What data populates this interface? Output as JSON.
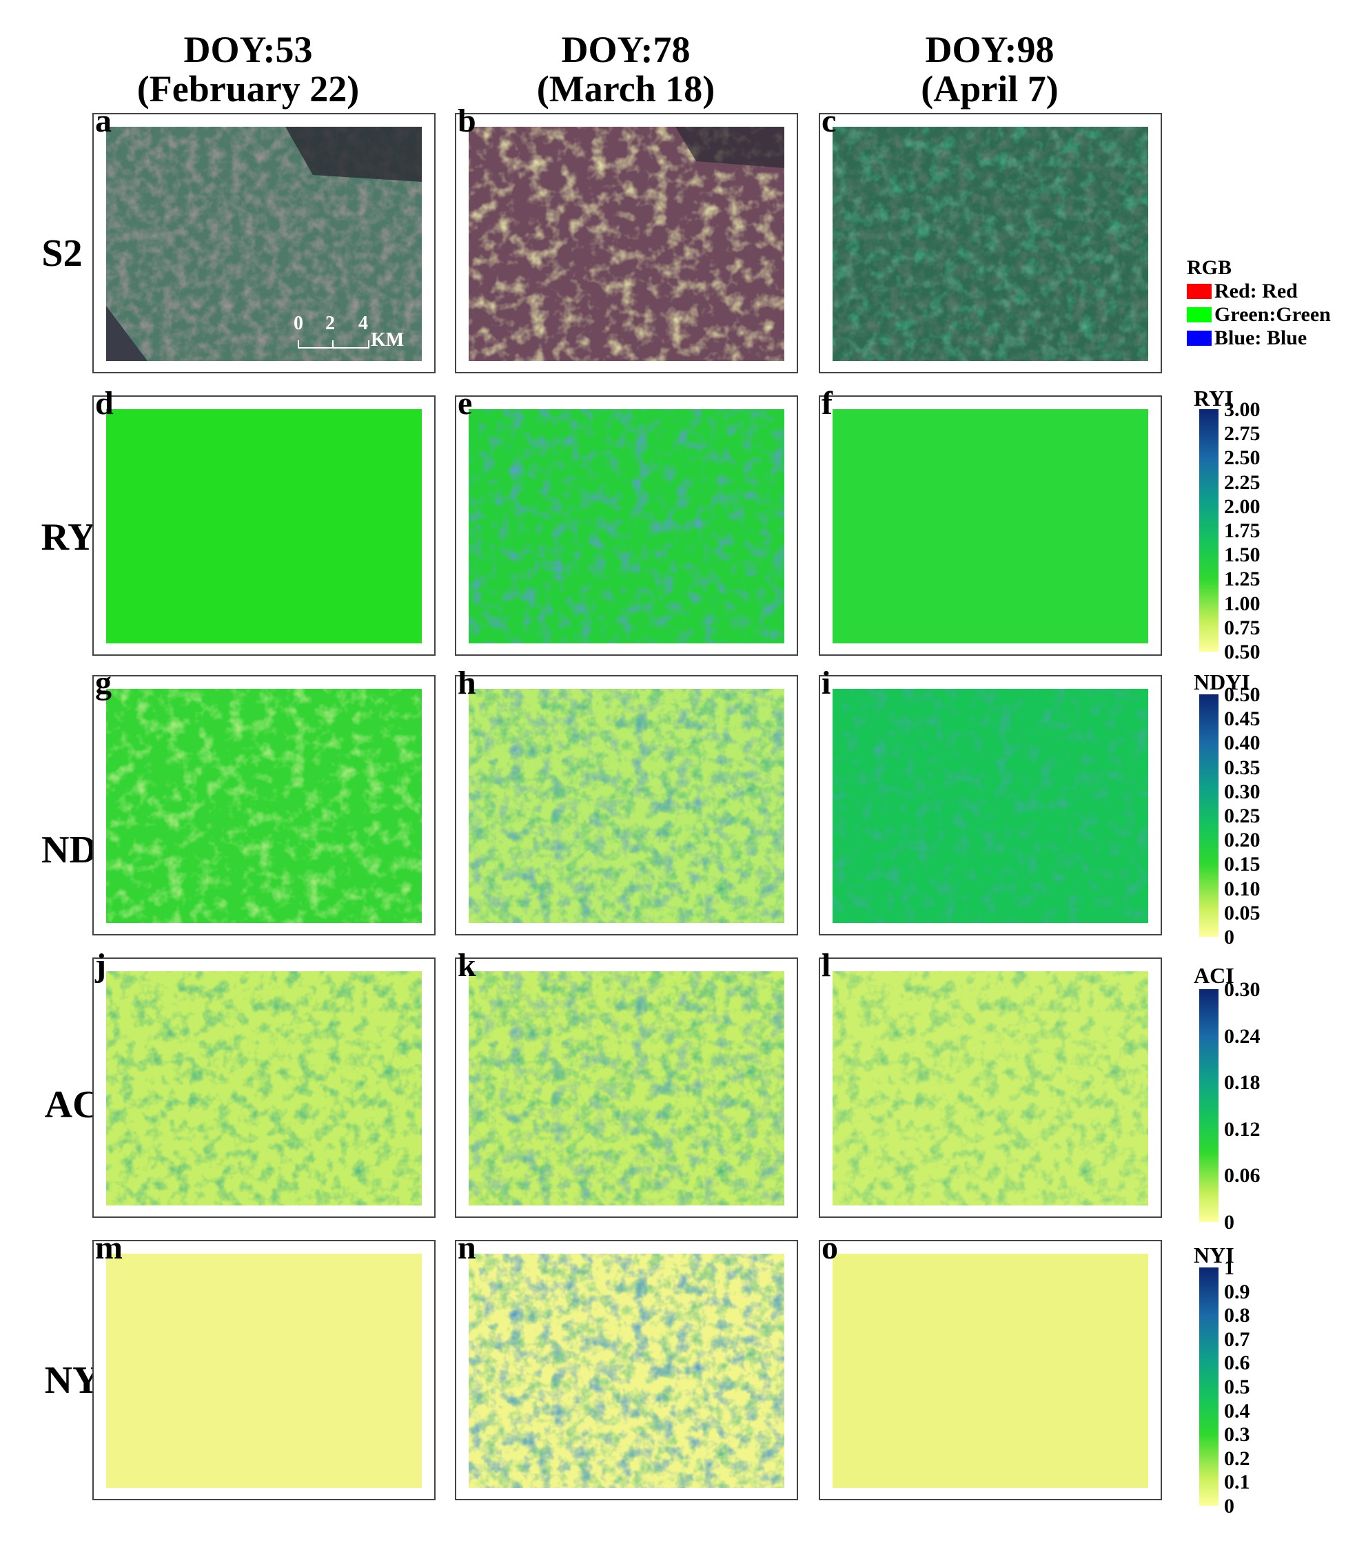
{
  "columns": [
    {
      "doy": "DOY:53",
      "date": "(February 22)"
    },
    {
      "doy": "DOY:78",
      "date": "(March 18)"
    },
    {
      "doy": "DOY:98",
      "date": "(April 7)"
    }
  ],
  "rows": [
    "S2",
    "RYI",
    "NDYI",
    "ACI",
    "NYI"
  ],
  "panels": [
    "a",
    "b",
    "c",
    "d",
    "e",
    "f",
    "g",
    "h",
    "i",
    "j",
    "k",
    "l",
    "m",
    "n",
    "o"
  ],
  "scalebar": {
    "ticks": [
      "0",
      "2",
      "4"
    ],
    "unit": "KM"
  },
  "legend_rgb": {
    "title": "RGB",
    "items": [
      {
        "label": "Red: Red",
        "color": "#ff0000"
      },
      {
        "label": "Green:Green",
        "color": "#00ff00"
      },
      {
        "label": "Blue: Blue",
        "color": "#0000ff"
      }
    ]
  },
  "colorbars": [
    {
      "title": "RYI",
      "ticks": [
        "3.00",
        "2.75",
        "2.50",
        "2.25",
        "2.00",
        "1.75",
        "1.50",
        "1.25",
        "1.00",
        "0.75",
        "0.50"
      ]
    },
    {
      "title": "NDYI",
      "ticks": [
        "0.50",
        "0.45",
        "0.40",
        "0.35",
        "0.30",
        "0.25",
        "0.20",
        "0.15",
        "0.10",
        "0.05",
        "0"
      ]
    },
    {
      "title": "ACI",
      "ticks": [
        "0.30",
        "0.24",
        "0.18",
        "0.12",
        "0.06",
        "0"
      ]
    },
    {
      "title": "NYI",
      "ticks": [
        "1",
        "0.9",
        "0.8",
        "0.7",
        "0.6",
        "0.5",
        "0.4",
        "0.3",
        "0.2",
        "0.1",
        "0"
      ]
    }
  ],
  "colors": {
    "yellow_low": "#ffff99",
    "green_mid": "#2fd82f",
    "blue_high": "#0b2470",
    "s2_green": "#3f8a6e",
    "s2_pink": "#8c5a6a",
    "s2_yellow": "#e8e870"
  }
}
